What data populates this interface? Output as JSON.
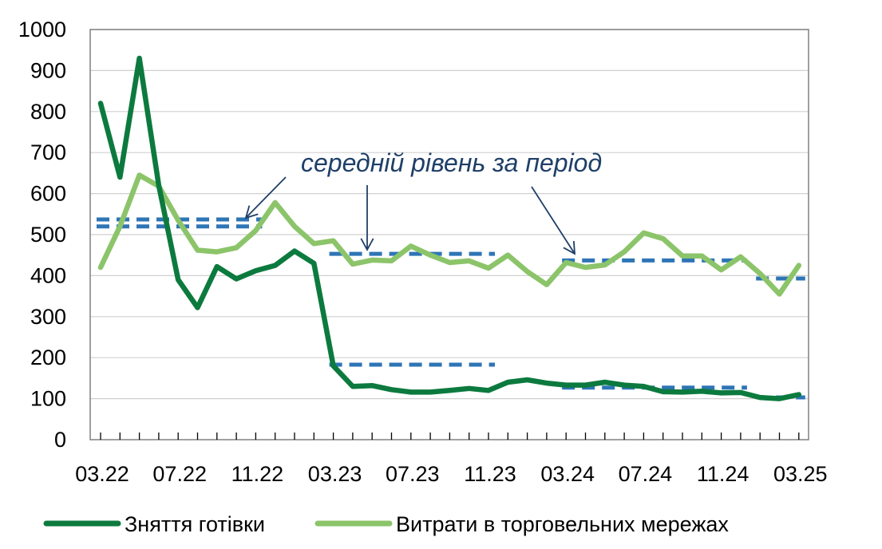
{
  "chart_data": {
    "type": "line",
    "x_tick_labels": [
      "03.22",
      "07.22",
      "11.22",
      "03.23",
      "07.23",
      "11.23",
      "03.24",
      "07.24",
      "11.24",
      "03.25"
    ],
    "x": [
      "03.22",
      "04.22",
      "05.22",
      "06.22",
      "07.22",
      "08.22",
      "09.22",
      "10.22",
      "11.22",
      "12.22",
      "01.23",
      "02.23",
      "03.23",
      "04.23",
      "05.23",
      "06.23",
      "07.23",
      "08.23",
      "09.23",
      "10.23",
      "11.23",
      "12.23",
      "01.24",
      "02.24",
      "03.24",
      "04.24",
      "05.24",
      "06.24",
      "07.24",
      "08.24",
      "09.24",
      "10.24",
      "11.24",
      "12.24",
      "01.25",
      "02.25",
      "03.25"
    ],
    "ylim": [
      0,
      1000
    ],
    "yticks": [
      0,
      100,
      200,
      300,
      400,
      500,
      600,
      700,
      800,
      900,
      1000
    ],
    "grid": "horizontal",
    "legend_position": "bottom",
    "series": [
      {
        "name": "Зняття готівки",
        "color": "#0c7a3e",
        "values": [
          820,
          640,
          930,
          620,
          390,
          322,
          422,
          392,
          412,
          425,
          460,
          430,
          180,
          130,
          132,
          122,
          116,
          116,
          120,
          125,
          120,
          140,
          146,
          138,
          133,
          133,
          140,
          133,
          130,
          117,
          116,
          118,
          114,
          115,
          103,
          100,
          110
        ]
      },
      {
        "name": "Витрати в торговельних мережах",
        "color": "#8cc46a",
        "values": [
          420,
          520,
          645,
          618,
          535,
          462,
          458,
          468,
          510,
          578,
          520,
          478,
          485,
          428,
          438,
          436,
          472,
          450,
          432,
          436,
          418,
          450,
          410,
          378,
          432,
          420,
          426,
          458,
          504,
          490,
          448,
          448,
          414,
          446,
          405,
          355,
          425
        ]
      }
    ],
    "average_lines": {
      "color": "#2e75b6",
      "segments": [
        {
          "from": "03.22",
          "to": "11.22",
          "value": 537
        },
        {
          "from": "03.22",
          "to": "11.22",
          "value": 520
        },
        {
          "from": "03.23",
          "to": "11.23",
          "value": 453
        },
        {
          "from": "03.23",
          "to": "11.23",
          "value": 183
        },
        {
          "from": "03.24",
          "to": "12.24",
          "value": 437
        },
        {
          "from": "03.24",
          "to": "12.24",
          "value": 127
        },
        {
          "from": "01.25",
          "to": "03.25",
          "value": 393
        },
        {
          "from": "01.25",
          "to": "03.25",
          "value": 103
        }
      ]
    },
    "annotation": "середній рівень за період"
  }
}
